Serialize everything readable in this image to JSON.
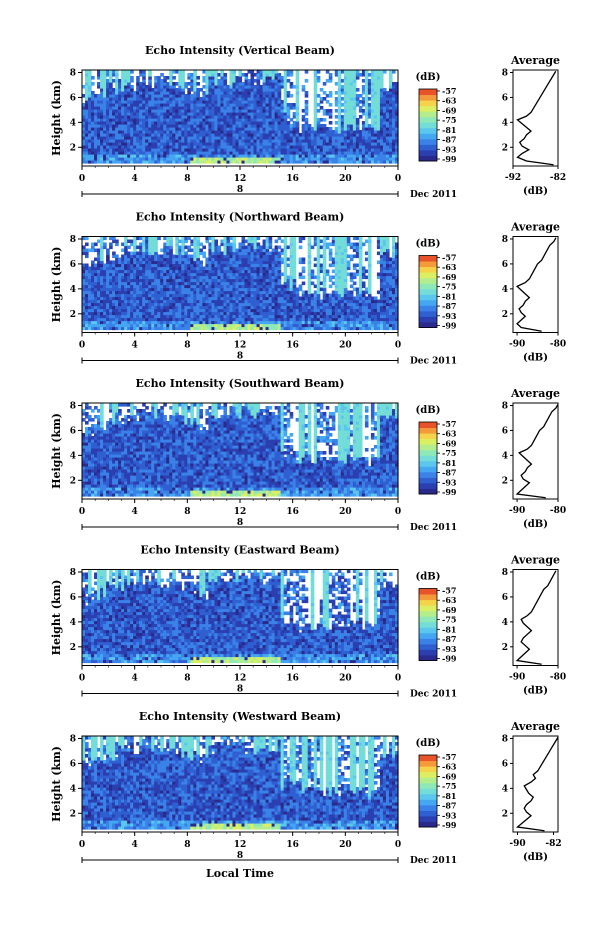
{
  "chart_data": [
    {
      "type": "heatmap",
      "title": "Echo Intensity (Vertical Beam)",
      "ylabel": "Height (km)",
      "xlabel": "",
      "x_ticks": [
        "0",
        "4",
        "8",
        "12",
        "16",
        "20",
        "0"
      ],
      "y_ticks": [
        "2",
        "4",
        "6",
        "8"
      ],
      "date_label": "Dec 2011",
      "date_marker": "8",
      "xlim": [
        0,
        24
      ],
      "ylim": [
        0.5,
        8.2
      ],
      "colorbar": {
        "unit": "(dB)",
        "ticks": [
          "-57",
          "-63",
          "-69",
          "-75",
          "-81",
          "-87",
          "-93",
          "-99"
        ]
      },
      "average_profile": {
        "title": "Average",
        "xlabel": "(dB)",
        "x_ticks": [
          "-92",
          "-82"
        ],
        "xlim": [
          -92,
          -82
        ],
        "y_ticks": [
          "2",
          "4",
          "6",
          "8"
        ],
        "ylim": [
          0.5,
          8.2
        ],
        "height": [
          0.6,
          0.9,
          1.2,
          1.5,
          1.8,
          2.1,
          2.4,
          2.7,
          3.0,
          3.3,
          3.6,
          3.9,
          4.2,
          4.5,
          4.8,
          5.1,
          5.4,
          5.7,
          6.0,
          6.3,
          6.6,
          6.9,
          7.2,
          7.5,
          7.8,
          8.1
        ],
        "values": [
          -83,
          -89,
          -91,
          -90,
          -88.5,
          -90,
          -90.5,
          -89.5,
          -89,
          -88,
          -89,
          -90,
          -91,
          -89,
          -88,
          -87.5,
          -87,
          -86.5,
          -86,
          -85.5,
          -85,
          -84.5,
          -84,
          -83.5,
          -83,
          -82.5
        ]
      }
    },
    {
      "type": "heatmap",
      "title": "Echo Intensity (Northward Beam)",
      "ylabel": "Height (km)",
      "xlabel": "",
      "x_ticks": [
        "0",
        "4",
        "8",
        "12",
        "16",
        "20",
        "0"
      ],
      "y_ticks": [
        "2",
        "4",
        "6",
        "8"
      ],
      "date_label": "Dec 2011",
      "date_marker": "8",
      "xlim": [
        0,
        24
      ],
      "ylim": [
        0.5,
        8.2
      ],
      "colorbar": {
        "unit": "(dB)",
        "ticks": [
          "-57",
          "-63",
          "-69",
          "-75",
          "-81",
          "-87",
          "-93",
          "-99"
        ]
      },
      "average_profile": {
        "title": "Average",
        "xlabel": "(dB)",
        "x_ticks": [
          "-90",
          "-80"
        ],
        "xlim": [
          -91,
          -80
        ],
        "y_ticks": [
          "2",
          "4",
          "6",
          "8"
        ],
        "ylim": [
          0.5,
          8.2
        ],
        "height": [
          0.6,
          0.9,
          1.2,
          1.5,
          1.8,
          2.1,
          2.4,
          2.7,
          3.0,
          3.3,
          3.6,
          3.9,
          4.2,
          4.5,
          4.8,
          5.1,
          5.4,
          5.7,
          6.0,
          6.3,
          6.6,
          6.9,
          7.2,
          7.5,
          7.8,
          8.1
        ],
        "values": [
          -84,
          -89,
          -90,
          -89,
          -88,
          -89,
          -89.5,
          -88.5,
          -88,
          -87,
          -88,
          -89,
          -90,
          -88,
          -87,
          -86.5,
          -86,
          -85.5,
          -85,
          -84,
          -83.5,
          -83,
          -82.5,
          -82,
          -81,
          -80.5
        ]
      }
    },
    {
      "type": "heatmap",
      "title": "Echo Intensity (Southward Beam)",
      "ylabel": "Height (km)",
      "xlabel": "",
      "x_ticks": [
        "0",
        "4",
        "8",
        "12",
        "16",
        "20",
        "0"
      ],
      "y_ticks": [
        "2",
        "4",
        "6",
        "8"
      ],
      "date_label": "Dec 2011",
      "date_marker": "8",
      "xlim": [
        0,
        24
      ],
      "ylim": [
        0.5,
        8.2
      ],
      "colorbar": {
        "unit": "(dB)",
        "ticks": [
          "-57",
          "-63",
          "-69",
          "-75",
          "-81",
          "-87",
          "-93",
          "-99"
        ]
      },
      "average_profile": {
        "title": "Average",
        "xlabel": "(dB)",
        "x_ticks": [
          "-90",
          "-80"
        ],
        "xlim": [
          -91,
          -80
        ],
        "y_ticks": [
          "2",
          "4",
          "6",
          "8"
        ],
        "ylim": [
          0.5,
          8.2
        ],
        "height": [
          0.6,
          0.9,
          1.2,
          1.5,
          1.8,
          2.1,
          2.4,
          2.7,
          3.0,
          3.3,
          3.6,
          3.9,
          4.2,
          4.5,
          4.8,
          5.1,
          5.4,
          5.7,
          6.0,
          6.3,
          6.6,
          6.9,
          7.2,
          7.5,
          7.8,
          8.1
        ],
        "values": [
          -83,
          -90,
          -89,
          -88,
          -87,
          -88.5,
          -89,
          -88,
          -87.5,
          -86.5,
          -87.5,
          -88.5,
          -89.5,
          -87.5,
          -86.5,
          -86,
          -85.5,
          -85,
          -84.5,
          -83.5,
          -83,
          -82.5,
          -82,
          -81.5,
          -80.5,
          -80
        ]
      }
    },
    {
      "type": "heatmap",
      "title": "Echo Intensity (Eastward Beam)",
      "ylabel": "Height (km)",
      "xlabel": "",
      "x_ticks": [
        "0",
        "4",
        "8",
        "12",
        "16",
        "20",
        "0"
      ],
      "y_ticks": [
        "2",
        "4",
        "6",
        "8"
      ],
      "date_label": "Dec 2011",
      "date_marker": "8",
      "xlim": [
        0,
        24
      ],
      "ylim": [
        0.5,
        8.2
      ],
      "colorbar": {
        "unit": "(dB)",
        "ticks": [
          "-57",
          "-63",
          "-69",
          "-75",
          "-81",
          "-87",
          "-93",
          "-99"
        ]
      },
      "average_profile": {
        "title": "Average",
        "xlabel": "(dB)",
        "x_ticks": [
          "-90",
          "-80"
        ],
        "xlim": [
          -91,
          -80
        ],
        "y_ticks": [
          "2",
          "4",
          "6",
          "8"
        ],
        "ylim": [
          0.5,
          8.2
        ],
        "height": [
          0.6,
          0.9,
          1.2,
          1.5,
          1.8,
          2.1,
          2.4,
          2.7,
          3.0,
          3.3,
          3.6,
          3.9,
          4.2,
          4.5,
          4.8,
          5.1,
          5.4,
          5.7,
          6.0,
          6.3,
          6.6,
          6.9,
          7.2,
          7.5,
          7.8,
          8.1
        ],
        "values": [
          -84,
          -90,
          -89,
          -88,
          -87,
          -88,
          -89,
          -88.5,
          -87.5,
          -86.5,
          -87.5,
          -88.5,
          -89,
          -87.5,
          -86.5,
          -86,
          -85.5,
          -85,
          -84.5,
          -84,
          -83.5,
          -82.5,
          -82,
          -81.5,
          -81,
          -80.5
        ]
      }
    },
    {
      "type": "heatmap",
      "title": "Echo Intensity (Westward Beam)",
      "ylabel": "Height (km)",
      "xlabel": "Local Time",
      "x_ticks": [
        "0",
        "4",
        "8",
        "12",
        "16",
        "20",
        "0"
      ],
      "y_ticks": [
        "2",
        "4",
        "6",
        "8"
      ],
      "date_label": "Dec 2011",
      "date_marker": "8",
      "xlim": [
        0,
        24
      ],
      "ylim": [
        0.5,
        8.2
      ],
      "colorbar": {
        "unit": "(dB)",
        "ticks": [
          "-57",
          "-63",
          "-69",
          "-75",
          "-81",
          "-87",
          "-93",
          "-99"
        ]
      },
      "average_profile": {
        "title": "Average",
        "xlabel": "(dB)",
        "x_ticks": [
          "-90",
          "-82"
        ],
        "xlim": [
          -91,
          -81
        ],
        "y_ticks": [
          "2",
          "4",
          "6",
          "8"
        ],
        "ylim": [
          0.5,
          8.2
        ],
        "height": [
          0.6,
          0.9,
          1.2,
          1.5,
          1.8,
          2.1,
          2.4,
          2.7,
          3.0,
          3.3,
          3.6,
          3.9,
          4.2,
          4.5,
          4.8,
          5.1,
          5.4,
          5.7,
          6.0,
          6.3,
          6.6,
          6.9,
          7.2,
          7.5,
          7.8,
          8.1
        ],
        "values": [
          -84,
          -90,
          -89,
          -88,
          -87,
          -88,
          -88.5,
          -88,
          -87,
          -86.5,
          -87.5,
          -88,
          -88.5,
          -87,
          -86,
          -86.5,
          -85.5,
          -85,
          -84.5,
          -84,
          -83.5,
          -83,
          -82.5,
          -82,
          -81.5,
          -81
        ]
      }
    }
  ],
  "colors": {
    "colormap": [
      "#2a2a8c",
      "#2b3fb0",
      "#2f5fd0",
      "#3a82e8",
      "#45a6f2",
      "#5cc7ee",
      "#74ddd8",
      "#8fe8b8",
      "#b4ee8c",
      "#dcef62",
      "#f5d34a",
      "#f59a3a",
      "#e8532a"
    ],
    "no_data": "#ffffff",
    "line": "#000000"
  }
}
